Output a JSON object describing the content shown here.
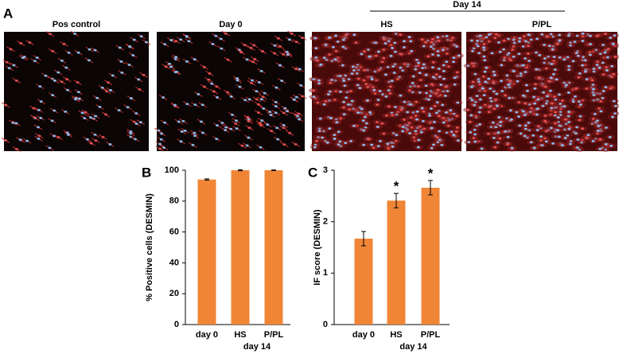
{
  "figure": {
    "panel_a_label": "A",
    "group_label": "Day 14",
    "images": [
      "Pos control",
      "Day 0",
      "HS",
      "P/PL"
    ]
  },
  "chart_data": [
    {
      "type": "bar",
      "panel_label": "B",
      "ylabel": "% Positive cells (DESMIN)",
      "categories": [
        "day 0",
        "HS",
        "P/PL"
      ],
      "category_group": "day 14",
      "values": [
        94,
        100,
        100
      ],
      "errors": [
        0.4,
        0.3,
        0.2
      ],
      "color": "#f08536",
      "ylim": [
        0,
        100
      ],
      "yticks": [
        0,
        20,
        40,
        60,
        80,
        100
      ]
    },
    {
      "type": "bar",
      "panel_label": "C",
      "ylabel": "IF score (DESMIN)",
      "categories": [
        "day 0",
        "HS",
        "P/PL"
      ],
      "category_group": "day 14",
      "values": [
        1.67,
        2.41,
        2.66
      ],
      "errors": [
        0.14,
        0.14,
        0.14
      ],
      "color": "#f08536",
      "significance_labels": [
        null,
        "*",
        "*"
      ],
      "ylim": [
        0,
        3
      ],
      "yticks": [
        0,
        1,
        2,
        3
      ]
    }
  ]
}
